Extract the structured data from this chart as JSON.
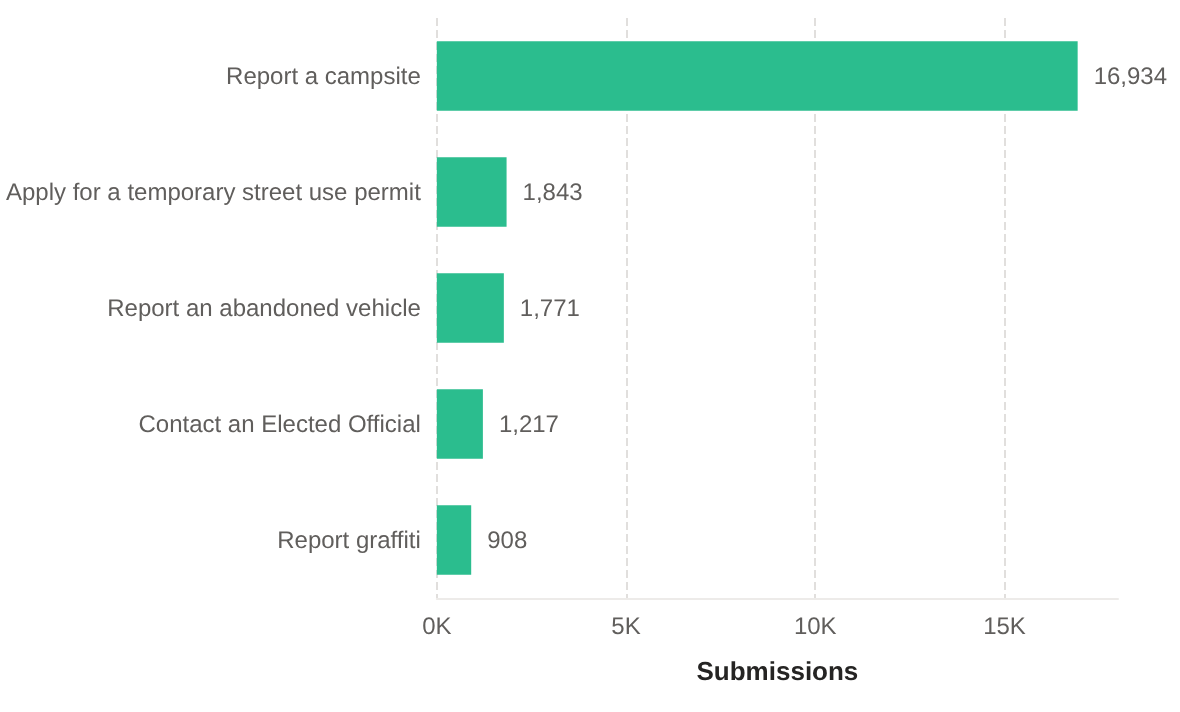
{
  "chart_data": {
    "type": "bar",
    "orientation": "horizontal",
    "xlabel": "Submissions",
    "categories": [
      "Report a campsite",
      "Apply for a temporary street use permit",
      "Report an abandoned vehicle",
      "Contact an Elected Official",
      "Report graffiti"
    ],
    "values": [
      16934,
      1843,
      1771,
      1217,
      908
    ],
    "value_labels": [
      "16,934",
      "1,843",
      "1,771",
      "1,217",
      "908"
    ],
    "color": "#2bbd8e",
    "xlim": [
      0,
      18000
    ],
    "xticks": [
      {
        "value": 0,
        "label": "0K"
      },
      {
        "value": 5000,
        "label": "5K"
      },
      {
        "value": 10000,
        "label": "10K"
      },
      {
        "value": 15000,
        "label": "15K"
      }
    ],
    "grid": "x"
  }
}
